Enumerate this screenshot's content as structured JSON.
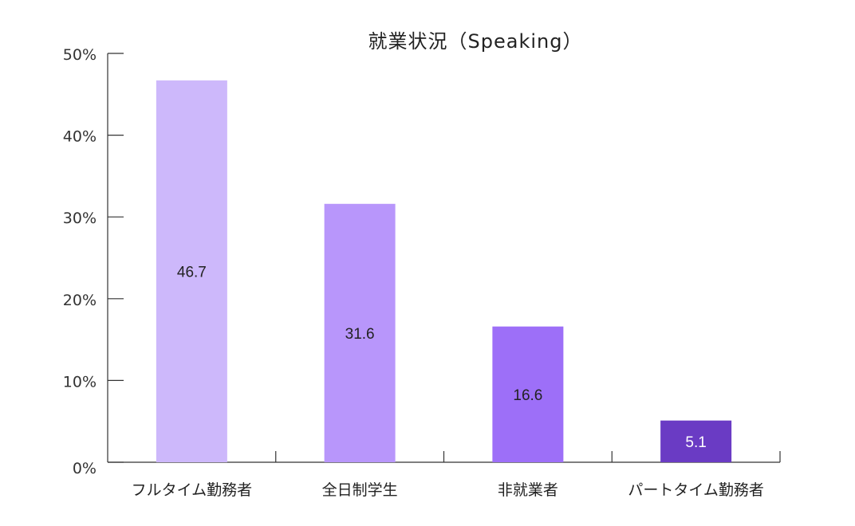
{
  "chart_data": {
    "type": "bar",
    "title": "就業状況（Speaking）",
    "xlabel": "",
    "ylabel": "",
    "categories": [
      "フルタイム勤務者",
      "全日制学生",
      "非就業者",
      "パートタイム勤務者"
    ],
    "values": [
      46.7,
      31.6,
      16.6,
      5.1
    ],
    "data_labels": [
      "46.7",
      "31.6",
      "16.6",
      "5.1"
    ],
    "ylim": [
      0,
      50
    ],
    "yticks": [
      0,
      10,
      20,
      30,
      40,
      50
    ],
    "ytick_labels": [
      "0%",
      "10%",
      "20%",
      "30%",
      "40%",
      "50%"
    ],
    "grid": false,
    "legend": "none",
    "bar_colors": [
      "#cdb8fb",
      "#b896fb",
      "#9d6ff8",
      "#6a3bc4"
    ],
    "label_colors": [
      "#222222",
      "#222222",
      "#222222",
      "#ffffff"
    ]
  }
}
